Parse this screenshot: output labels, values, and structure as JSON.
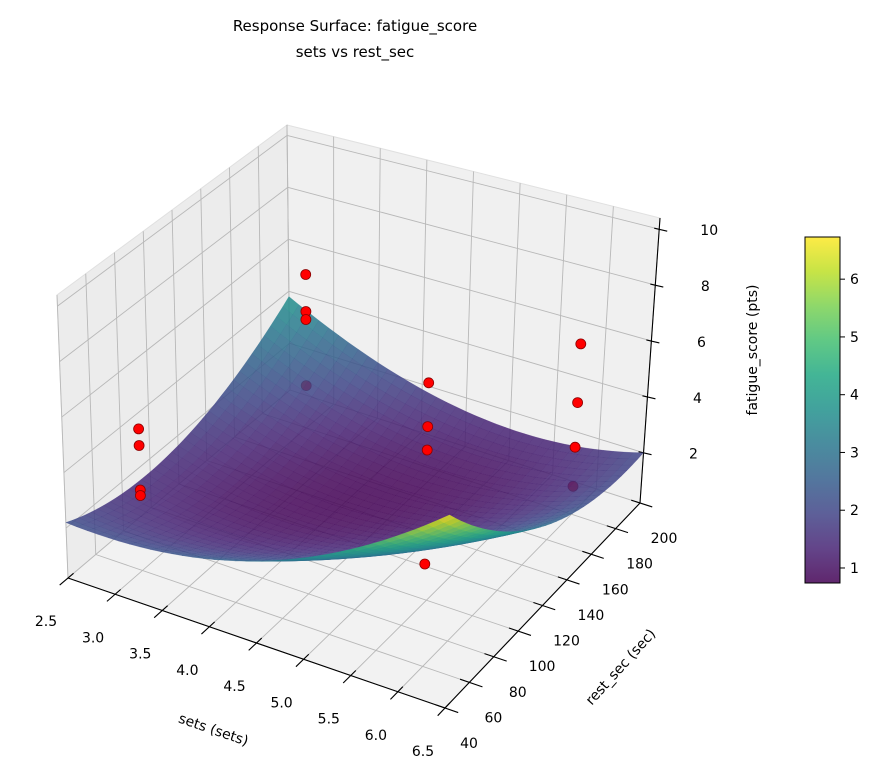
{
  "chart_data": {
    "type": "surface",
    "title": "Response Surface: fatigue_score",
    "subtitle": "sets vs rest_sec",
    "xlabel": "sets (sets)",
    "ylabel": "rest_sec (sec)",
    "zlabel": "fatigue_score (pts)",
    "xlim": [
      2.5,
      6.5
    ],
    "ylim": [
      40,
      200
    ],
    "zlim": [
      0.2,
      10.4
    ],
    "xticks": [
      "2.5",
      "3.0",
      "3.5",
      "4.0",
      "4.5",
      "5.0",
      "5.5",
      "6.0",
      "6.5"
    ],
    "yticks": [
      "40",
      "60",
      "80",
      "100",
      "120",
      "140",
      "160",
      "180",
      "200"
    ],
    "zticks": [
      "2",
      "4",
      "6",
      "8",
      "10"
    ],
    "grid": true,
    "colormap": "viridis",
    "surface_alpha": 0.85,
    "surface_grid": {
      "sets": [
        2.5,
        3.5,
        4.5,
        5.5,
        6.5
      ],
      "rest_sec": [
        40,
        80,
        120,
        160,
        200
      ],
      "z": [
        [
          2.2,
          2.28,
          3.05,
          4.53,
          6.7
        ],
        [
          1.57,
          1.25,
          1.63,
          2.71,
          4.49
        ],
        [
          1.63,
          0.91,
          0.9,
          1.59,
          2.98
        ],
        [
          2.37,
          1.26,
          0.86,
          1.15,
          2.14
        ],
        [
          3.8,
          2.3,
          1.5,
          1.4,
          2.0
        ]
      ]
    },
    "points": [
      {
        "sets": 3,
        "rest_sec": 60,
        "fatigue_score": 5.3
      },
      {
        "sets": 3,
        "rest_sec": 60,
        "fatigue_score": 4.7
      },
      {
        "sets": 3,
        "rest_sec": 60,
        "fatigue_score": 3.1
      },
      {
        "sets": 3,
        "rest_sec": 60,
        "fatigue_score": 2.9
      },
      {
        "sets": 3,
        "rest_sec": 180,
        "fatigue_score": 6.0
      },
      {
        "sets": 3,
        "rest_sec": 180,
        "fatigue_score": 4.6
      },
      {
        "sets": 3,
        "rest_sec": 180,
        "fatigue_score": 4.3
      },
      {
        "sets": 3,
        "rest_sec": 180,
        "fatigue_score": 1.8
      },
      {
        "sets": 6,
        "rest_sec": 60,
        "fatigue_score": 9.9
      },
      {
        "sets": 6,
        "rest_sec": 60,
        "fatigue_score": 8.4
      },
      {
        "sets": 6,
        "rest_sec": 60,
        "fatigue_score": 7.6
      },
      {
        "sets": 6,
        "rest_sec": 60,
        "fatigue_score": 3.7
      },
      {
        "sets": 6,
        "rest_sec": 180,
        "fatigue_score": 6.3
      },
      {
        "sets": 6,
        "rest_sec": 180,
        "fatigue_score": 4.2
      },
      {
        "sets": 6,
        "rest_sec": 180,
        "fatigue_score": 2.6
      },
      {
        "sets": 6,
        "rest_sec": 180,
        "fatigue_score": 1.2
      }
    ],
    "point_color": "#ff0000",
    "point_edge_color": "#8b0000",
    "colorbar": {
      "range": [
        0.74,
        6.73
      ],
      "ticks": [
        "1",
        "2",
        "3",
        "4",
        "5",
        "6"
      ]
    }
  }
}
